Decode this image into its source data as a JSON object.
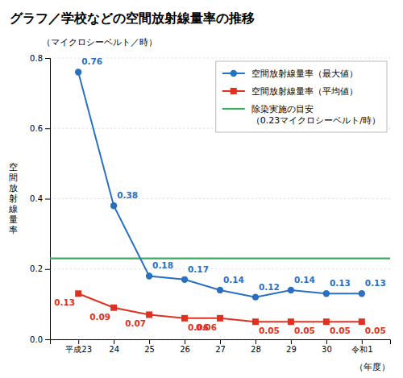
{
  "chart_data": {
    "type": "line",
    "title": "グラフ／学校などの空間放射線量率の推移",
    "x_label": "（年度）",
    "y_label": "空\n間\n放\n射\n線\n量\n率",
    "y_unit": "（マイクロシーベルト／時）",
    "categories": [
      "平成23",
      "24",
      "25",
      "26",
      "27",
      "28",
      "29",
      "30",
      "令和1"
    ],
    "series": [
      {
        "name": "空間放射線量率（最大値）",
        "color": "#2970c0",
        "marker": "circle",
        "values": [
          0.76,
          0.38,
          0.18,
          0.17,
          0.14,
          0.12,
          0.14,
          0.13,
          0.13
        ]
      },
      {
        "name": "空間放射線量率（平均値）",
        "color": "#e03020",
        "marker": "square",
        "values": [
          0.13,
          0.09,
          0.07,
          0.06,
          0.06,
          0.05,
          0.05,
          0.05,
          0.05
        ]
      }
    ],
    "reference_line": {
      "name": "除染実施の目安\n（0.23マイクロシーベルト/時）",
      "value": 0.23,
      "color": "#3aaa60"
    },
    "ylim": [
      0,
      0.8
    ],
    "yticks": [
      {
        "value": 0,
        "label": "0.0"
      },
      0.2,
      0.4,
      0.6,
      0.8
    ],
    "grid": true,
    "legend": "top-right",
    "data_labels": true
  }
}
